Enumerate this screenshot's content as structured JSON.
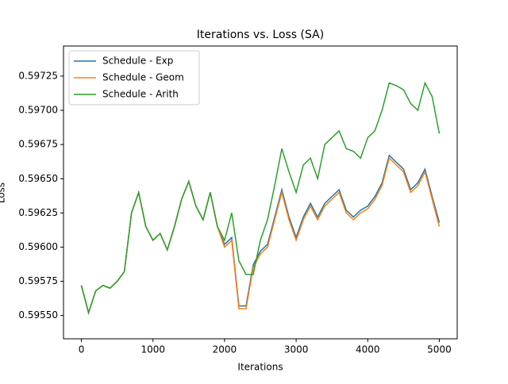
{
  "chart_data": {
    "type": "line",
    "title": "Iterations vs. Loss (SA)",
    "x_label": "Iterations",
    "y_label": "Loss",
    "x": [
      0,
      100,
      200,
      300,
      400,
      500,
      600,
      700,
      800,
      900,
      1000,
      1100,
      1200,
      1300,
      1400,
      1500,
      1600,
      1700,
      1800,
      1900,
      2000,
      2100,
      2200,
      2300,
      2400,
      2500,
      2600,
      2700,
      2800,
      2900,
      3000,
      3100,
      3200,
      3300,
      3400,
      3500,
      3600,
      3700,
      3800,
      3900,
      4000,
      4100,
      4200,
      4300,
      4400,
      4500,
      4600,
      4700,
      4800,
      4900,
      5000
    ],
    "series": [
      {
        "name": "Schedule - Exp",
        "color": "#1f77b4",
        "values": [
          0.59572,
          0.59552,
          0.59568,
          0.59572,
          0.5957,
          0.59575,
          0.59582,
          0.59625,
          0.5964,
          0.59615,
          0.59605,
          0.5961,
          0.59598,
          0.59615,
          0.59635,
          0.59648,
          0.5963,
          0.5962,
          0.5964,
          0.59615,
          0.59602,
          0.59607,
          0.59557,
          0.59557,
          0.59587,
          0.59597,
          0.59602,
          0.59622,
          0.59642,
          0.59622,
          0.59607,
          0.59622,
          0.59632,
          0.59622,
          0.59632,
          0.59637,
          0.59642,
          0.59627,
          0.59622,
          0.59627,
          0.5963,
          0.59637,
          0.59647,
          0.59667,
          0.59662,
          0.59657,
          0.59642,
          0.59647,
          0.59657,
          0.59637,
          0.59618
        ]
      },
      {
        "name": "Schedule - Geom",
        "color": "#ff7f0e",
        "values": [
          0.59572,
          0.59552,
          0.59568,
          0.59572,
          0.5957,
          0.59575,
          0.59582,
          0.59625,
          0.5964,
          0.59615,
          0.59605,
          0.5961,
          0.59598,
          0.59615,
          0.59635,
          0.59648,
          0.5963,
          0.5962,
          0.5964,
          0.59615,
          0.596,
          0.59605,
          0.59555,
          0.59555,
          0.59585,
          0.59595,
          0.596,
          0.5962,
          0.5964,
          0.5962,
          0.59605,
          0.5962,
          0.5963,
          0.5962,
          0.5963,
          0.59635,
          0.5964,
          0.59625,
          0.5962,
          0.59625,
          0.59628,
          0.59635,
          0.59645,
          0.59665,
          0.5966,
          0.59655,
          0.5964,
          0.59645,
          0.59655,
          0.59635,
          0.59615
        ]
      },
      {
        "name": "Schedule - Arith",
        "color": "#2ca02c",
        "values": [
          0.59572,
          0.59552,
          0.59568,
          0.59572,
          0.5957,
          0.59575,
          0.59582,
          0.59625,
          0.5964,
          0.59615,
          0.59605,
          0.5961,
          0.59598,
          0.59615,
          0.59635,
          0.59648,
          0.5963,
          0.5962,
          0.5964,
          0.59615,
          0.59605,
          0.59625,
          0.5959,
          0.5958,
          0.5958,
          0.59605,
          0.5962,
          0.59645,
          0.59672,
          0.59655,
          0.5964,
          0.5966,
          0.59665,
          0.5965,
          0.59675,
          0.5968,
          0.59685,
          0.59672,
          0.5967,
          0.59665,
          0.5968,
          0.59685,
          0.597,
          0.5972,
          0.59718,
          0.59715,
          0.59705,
          0.597,
          0.5972,
          0.5971,
          0.59683
        ]
      }
    ],
    "xlim": [
      -250,
      5250
    ],
    "ylim": [
      0.59533,
      0.59747
    ],
    "xticks": [
      0,
      1000,
      2000,
      3000,
      4000,
      5000
    ],
    "yticks": [
      {
        "value": 0.5955,
        "label": "0.59550"
      },
      0.59575,
      {
        "value": 0.596,
        "label": "0.59600"
      },
      0.59625,
      {
        "value": 0.5965,
        "label": "0.59650"
      },
      0.59675,
      {
        "value": 0.597,
        "label": "0.59700"
      },
      0.59725
    ],
    "legend": "upper left"
  }
}
